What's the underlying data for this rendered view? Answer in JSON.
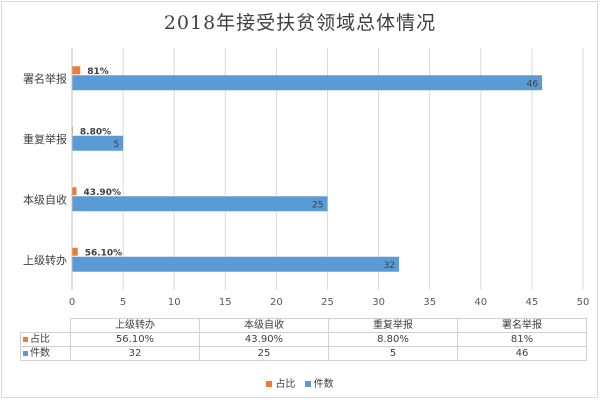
{
  "chart_data": {
    "type": "bar",
    "orientation": "horizontal",
    "title": "2018年接受扶贫领域总体情况",
    "categories": [
      "上级转办",
      "本级自收",
      "重复举报",
      "署名举报"
    ],
    "series": [
      {
        "name": "占比",
        "color": "#ED7D31",
        "values": [
          0.561,
          0.439,
          0.088,
          0.81
        ],
        "labels": [
          "56.10%",
          "43.90%",
          "8.80%",
          "81%"
        ]
      },
      {
        "name": "件数",
        "color": "#5B9BD5",
        "values": [
          32,
          25,
          5,
          46
        ],
        "labels": [
          "32",
          "25",
          "5",
          "46"
        ]
      }
    ],
    "xlim": [
      0,
      50
    ],
    "x_ticks": [
      "0",
      "5",
      "10",
      "15",
      "20",
      "25",
      "30",
      "35",
      "40",
      "45",
      "50"
    ],
    "grid": true,
    "legend_position": "bottom"
  }
}
